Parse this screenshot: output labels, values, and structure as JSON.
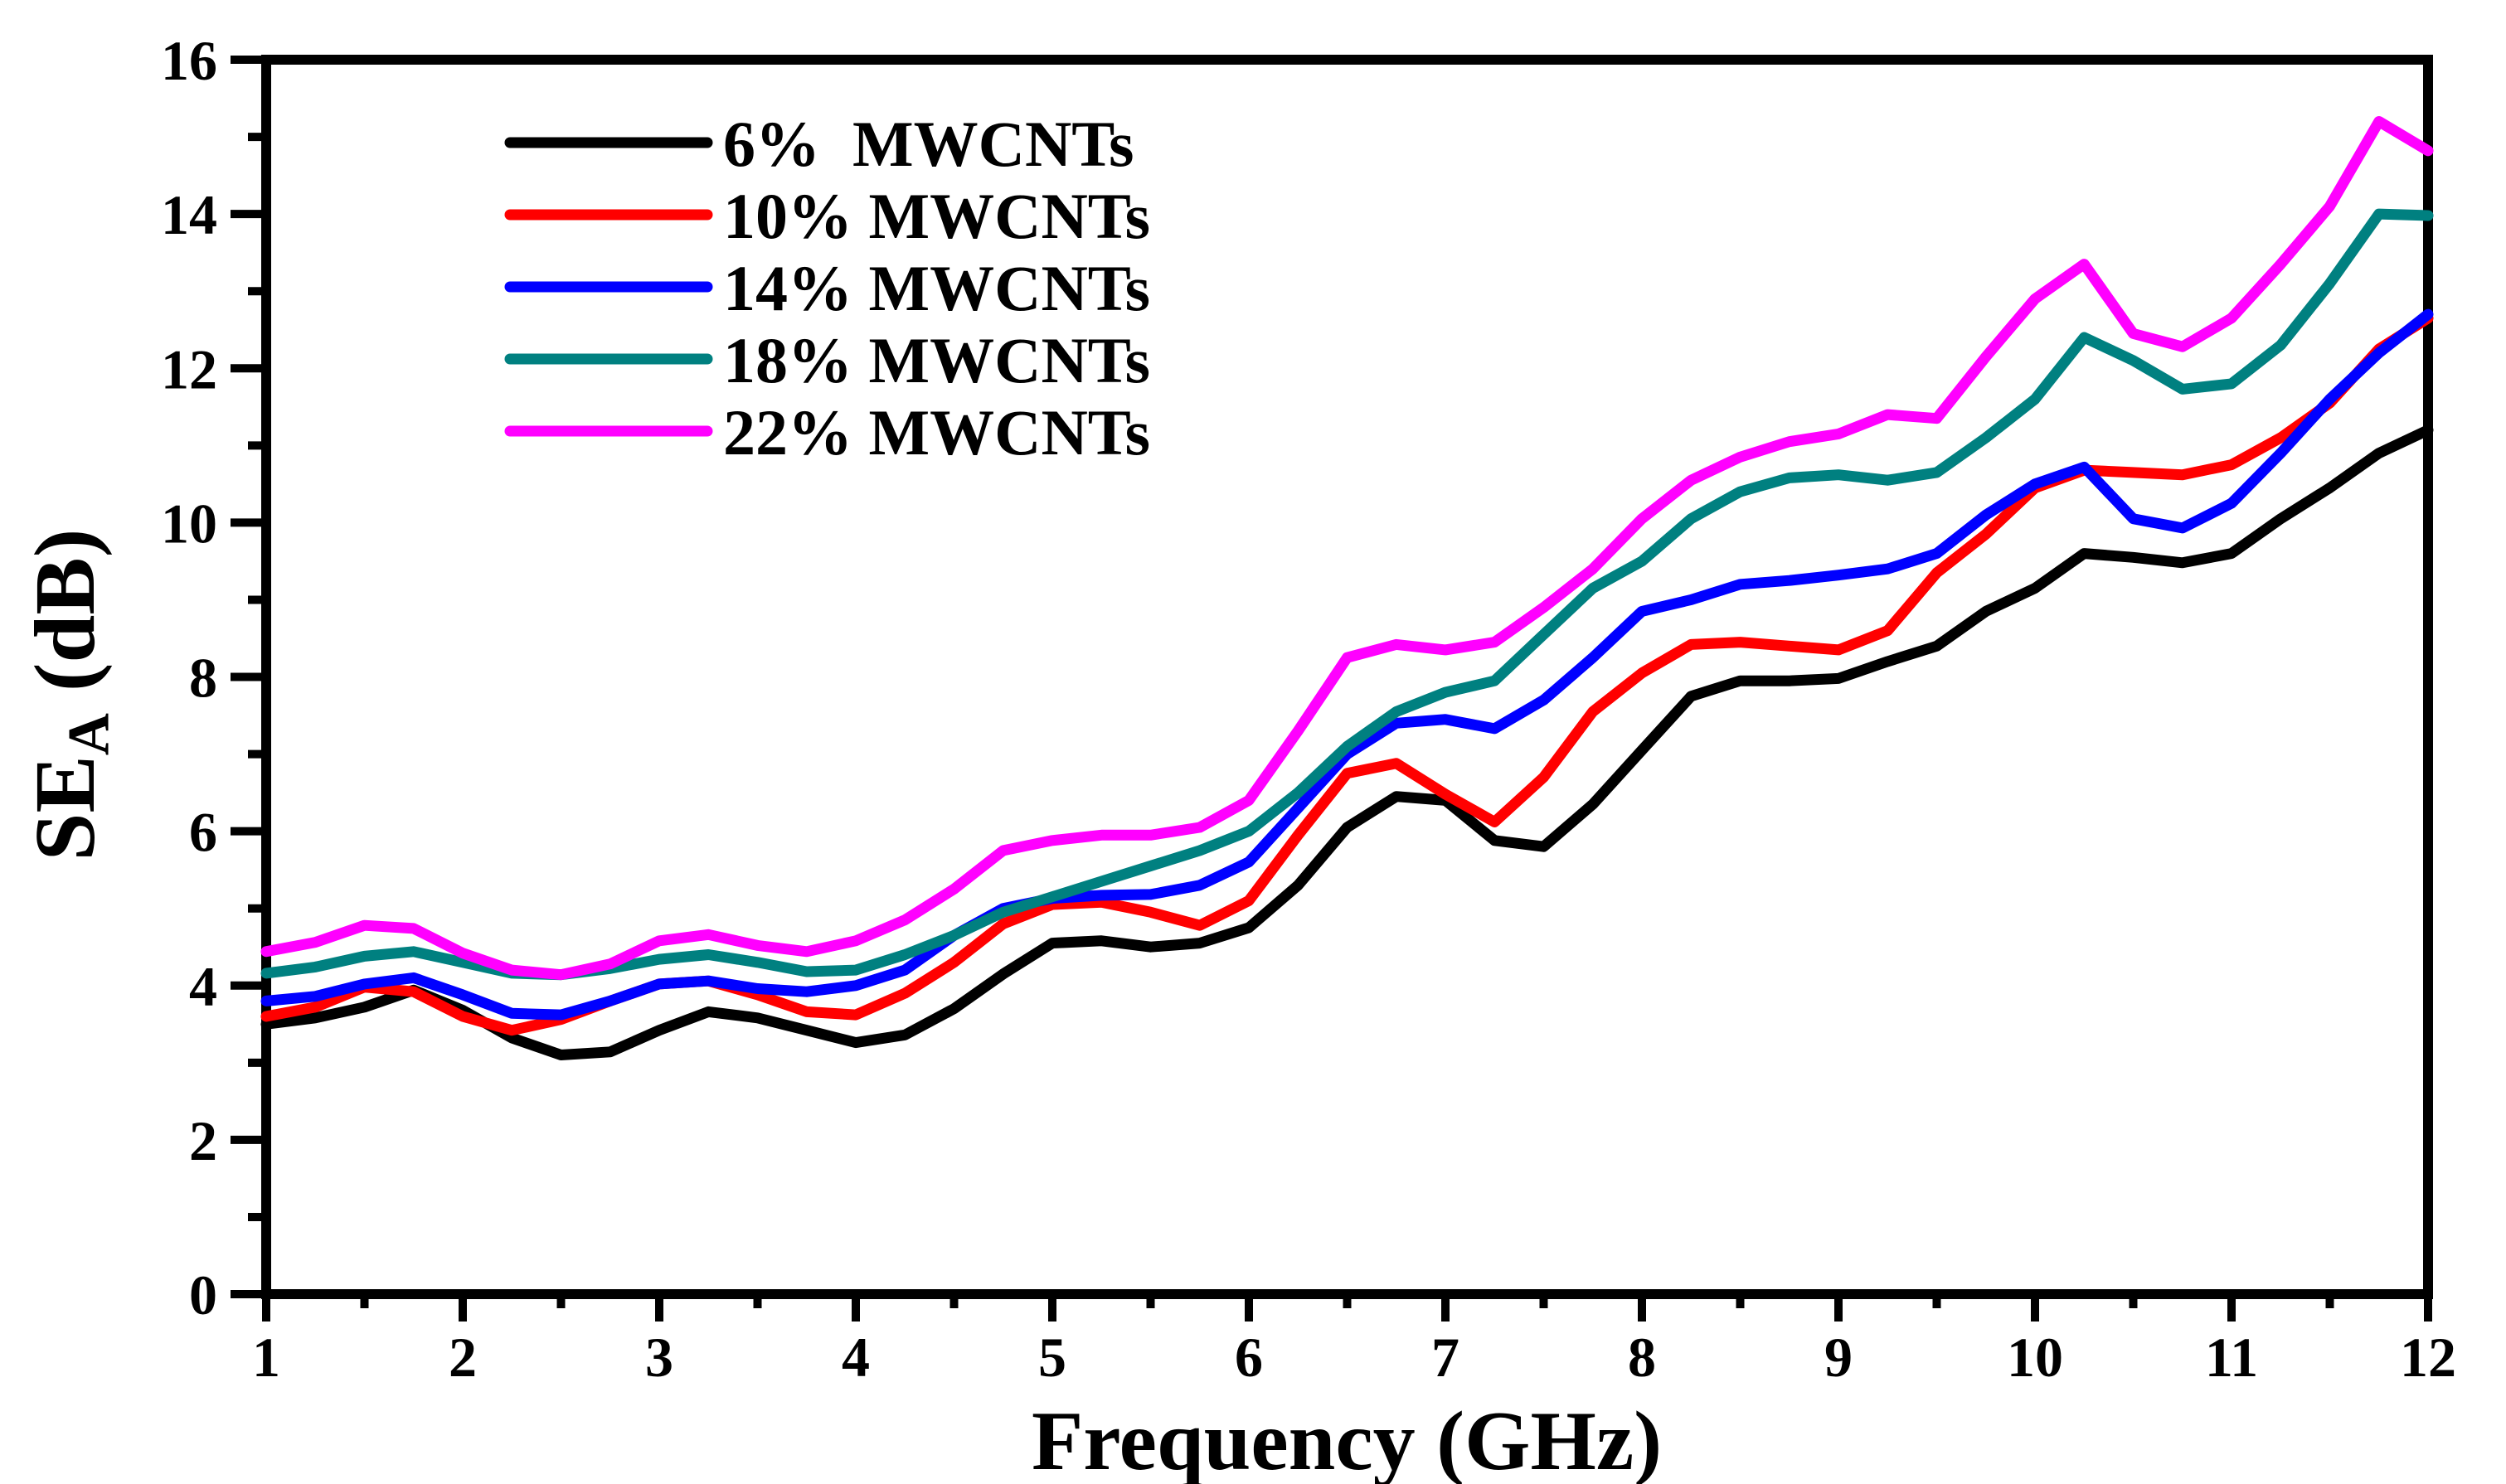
{
  "figure": {
    "background": "#ffffff",
    "frame_color": "#000000"
  },
  "chart_data": {
    "type": "line",
    "title": "",
    "grid": false,
    "legend_position": "top-left-inside",
    "x_axis": {
      "label": "Frequency (GHz)",
      "min": 1,
      "max": 12,
      "major_ticks": [
        1,
        2,
        3,
        4,
        5,
        6,
        7,
        8,
        9,
        10,
        11,
        12
      ],
      "major_tick_labels": [
        "1",
        "2",
        "3",
        "4",
        "5",
        "6",
        "7",
        "8",
        "9",
        "10",
        "11",
        "12"
      ],
      "minor_ticks": [
        1.5,
        2.5,
        3.5,
        4.5,
        5.5,
        6.5,
        7.5,
        8.5,
        9.5,
        10.5,
        11.5
      ]
    },
    "y_axis": {
      "label_main": "SE",
      "label_sub": "A",
      "label_unit": " (dB)",
      "min": 0,
      "max": 16,
      "major_ticks": [
        0,
        2,
        4,
        6,
        8,
        10,
        12,
        14,
        16
      ],
      "major_tick_labels": [
        "0",
        "2",
        "4",
        "6",
        "8",
        "10",
        "12",
        "14",
        "16"
      ],
      "minor_ticks": [
        1,
        3,
        5,
        7,
        9,
        11,
        13,
        15
      ]
    },
    "x": [
      1.0,
      1.25,
      1.5,
      1.75,
      2.0,
      2.25,
      2.5,
      2.75,
      3.0,
      3.25,
      3.5,
      3.75,
      4.0,
      4.25,
      4.5,
      4.75,
      5.0,
      5.25,
      5.5,
      5.75,
      6.0,
      6.25,
      6.5,
      6.75,
      7.0,
      7.25,
      7.5,
      7.75,
      8.0,
      8.25,
      8.5,
      8.75,
      9.0,
      9.25,
      9.5,
      9.75,
      10.0,
      10.25,
      10.5,
      10.75,
      11.0,
      11.25,
      11.5,
      11.75,
      12.0
    ],
    "series": [
      {
        "name": "6%  MWCNTs",
        "color": "#000000",
        "values": [
          3.5,
          3.58,
          3.72,
          3.94,
          3.68,
          3.32,
          3.1,
          3.14,
          3.42,
          3.66,
          3.58,
          3.42,
          3.26,
          3.36,
          3.7,
          4.15,
          4.55,
          4.58,
          4.5,
          4.55,
          4.75,
          5.3,
          6.05,
          6.45,
          6.4,
          5.88,
          5.8,
          6.35,
          7.05,
          7.75,
          7.95,
          7.95,
          7.98,
          8.2,
          8.4,
          8.85,
          9.15,
          9.6,
          9.55,
          9.48,
          9.6,
          10.05,
          10.45,
          10.9,
          11.2
        ]
      },
      {
        "name": "10% MWCNTs",
        "color": "#FF0000",
        "values": [
          3.6,
          3.72,
          3.98,
          3.92,
          3.6,
          3.42,
          3.56,
          3.8,
          4.02,
          4.06,
          3.88,
          3.66,
          3.62,
          3.9,
          4.3,
          4.8,
          5.05,
          5.08,
          4.95,
          4.78,
          5.1,
          5.95,
          6.75,
          6.88,
          6.48,
          6.12,
          6.7,
          7.55,
          8.05,
          8.42,
          8.45,
          8.4,
          8.35,
          8.6,
          9.35,
          9.85,
          10.45,
          10.68,
          10.65,
          10.62,
          10.75,
          11.1,
          11.55,
          12.25,
          12.65
        ]
      },
      {
        "name": "14% MWCNTs",
        "color": "#0000FF",
        "values": [
          3.8,
          3.86,
          4.02,
          4.1,
          3.88,
          3.64,
          3.62,
          3.8,
          4.02,
          4.06,
          3.96,
          3.92,
          4.0,
          4.2,
          4.65,
          5.0,
          5.13,
          5.17,
          5.18,
          5.3,
          5.6,
          6.3,
          7.0,
          7.4,
          7.45,
          7.33,
          7.7,
          8.25,
          8.85,
          9.0,
          9.2,
          9.25,
          9.32,
          9.4,
          9.6,
          10.1,
          10.5,
          10.72,
          10.05,
          9.93,
          10.25,
          10.9,
          11.6,
          12.2,
          12.7
        ]
      },
      {
        "name": "18% MWCNTs",
        "color": "#008080",
        "values": [
          4.16,
          4.24,
          4.38,
          4.44,
          4.3,
          4.16,
          4.14,
          4.22,
          4.34,
          4.4,
          4.3,
          4.18,
          4.2,
          4.4,
          4.65,
          4.95,
          5.15,
          5.35,
          5.55,
          5.75,
          6.0,
          6.5,
          7.1,
          7.55,
          7.8,
          7.95,
          8.55,
          9.15,
          9.5,
          10.05,
          10.4,
          10.58,
          10.62,
          10.55,
          10.65,
          11.1,
          11.6,
          12.4,
          12.1,
          11.73,
          11.8,
          12.3,
          13.1,
          14.0,
          13.98
        ]
      },
      {
        "name": "22% MWCNTs",
        "color": "#FF00FF",
        "values": [
          4.44,
          4.56,
          4.78,
          4.74,
          4.42,
          4.2,
          4.14,
          4.28,
          4.58,
          4.66,
          4.52,
          4.44,
          4.58,
          4.85,
          5.25,
          5.75,
          5.88,
          5.95,
          5.95,
          6.05,
          6.4,
          7.3,
          8.25,
          8.42,
          8.35,
          8.45,
          8.9,
          9.4,
          10.05,
          10.55,
          10.85,
          11.05,
          11.15,
          11.4,
          11.35,
          12.15,
          12.9,
          13.35,
          12.45,
          12.28,
          12.65,
          13.35,
          14.1,
          15.2,
          14.82
        ]
      }
    ]
  }
}
